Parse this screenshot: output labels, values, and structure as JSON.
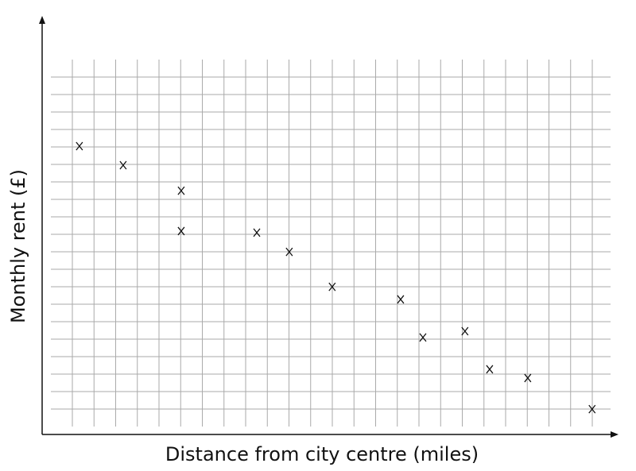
{
  "chart_data": {
    "type": "scatter",
    "x_label": "Distance from city centre (miles)",
    "y_label": "Monthly rent (£)",
    "x": [
      1.72,
      3.74,
      6.42,
      6.42,
      9.91,
      11.41,
      13.39,
      16.55,
      17.58,
      19.52,
      20.66,
      22.42,
      25.39
    ],
    "y": [
      16.5,
      15.41,
      13.95,
      11.64,
      11.55,
      10.45,
      8.45,
      7.73,
      5.55,
      5.91,
      3.73,
      3.23,
      1.45
    ],
    "xlim": [
      0,
      26.5
    ],
    "ylim": [
      0,
      24
    ],
    "grid": true,
    "color": "#111111"
  }
}
